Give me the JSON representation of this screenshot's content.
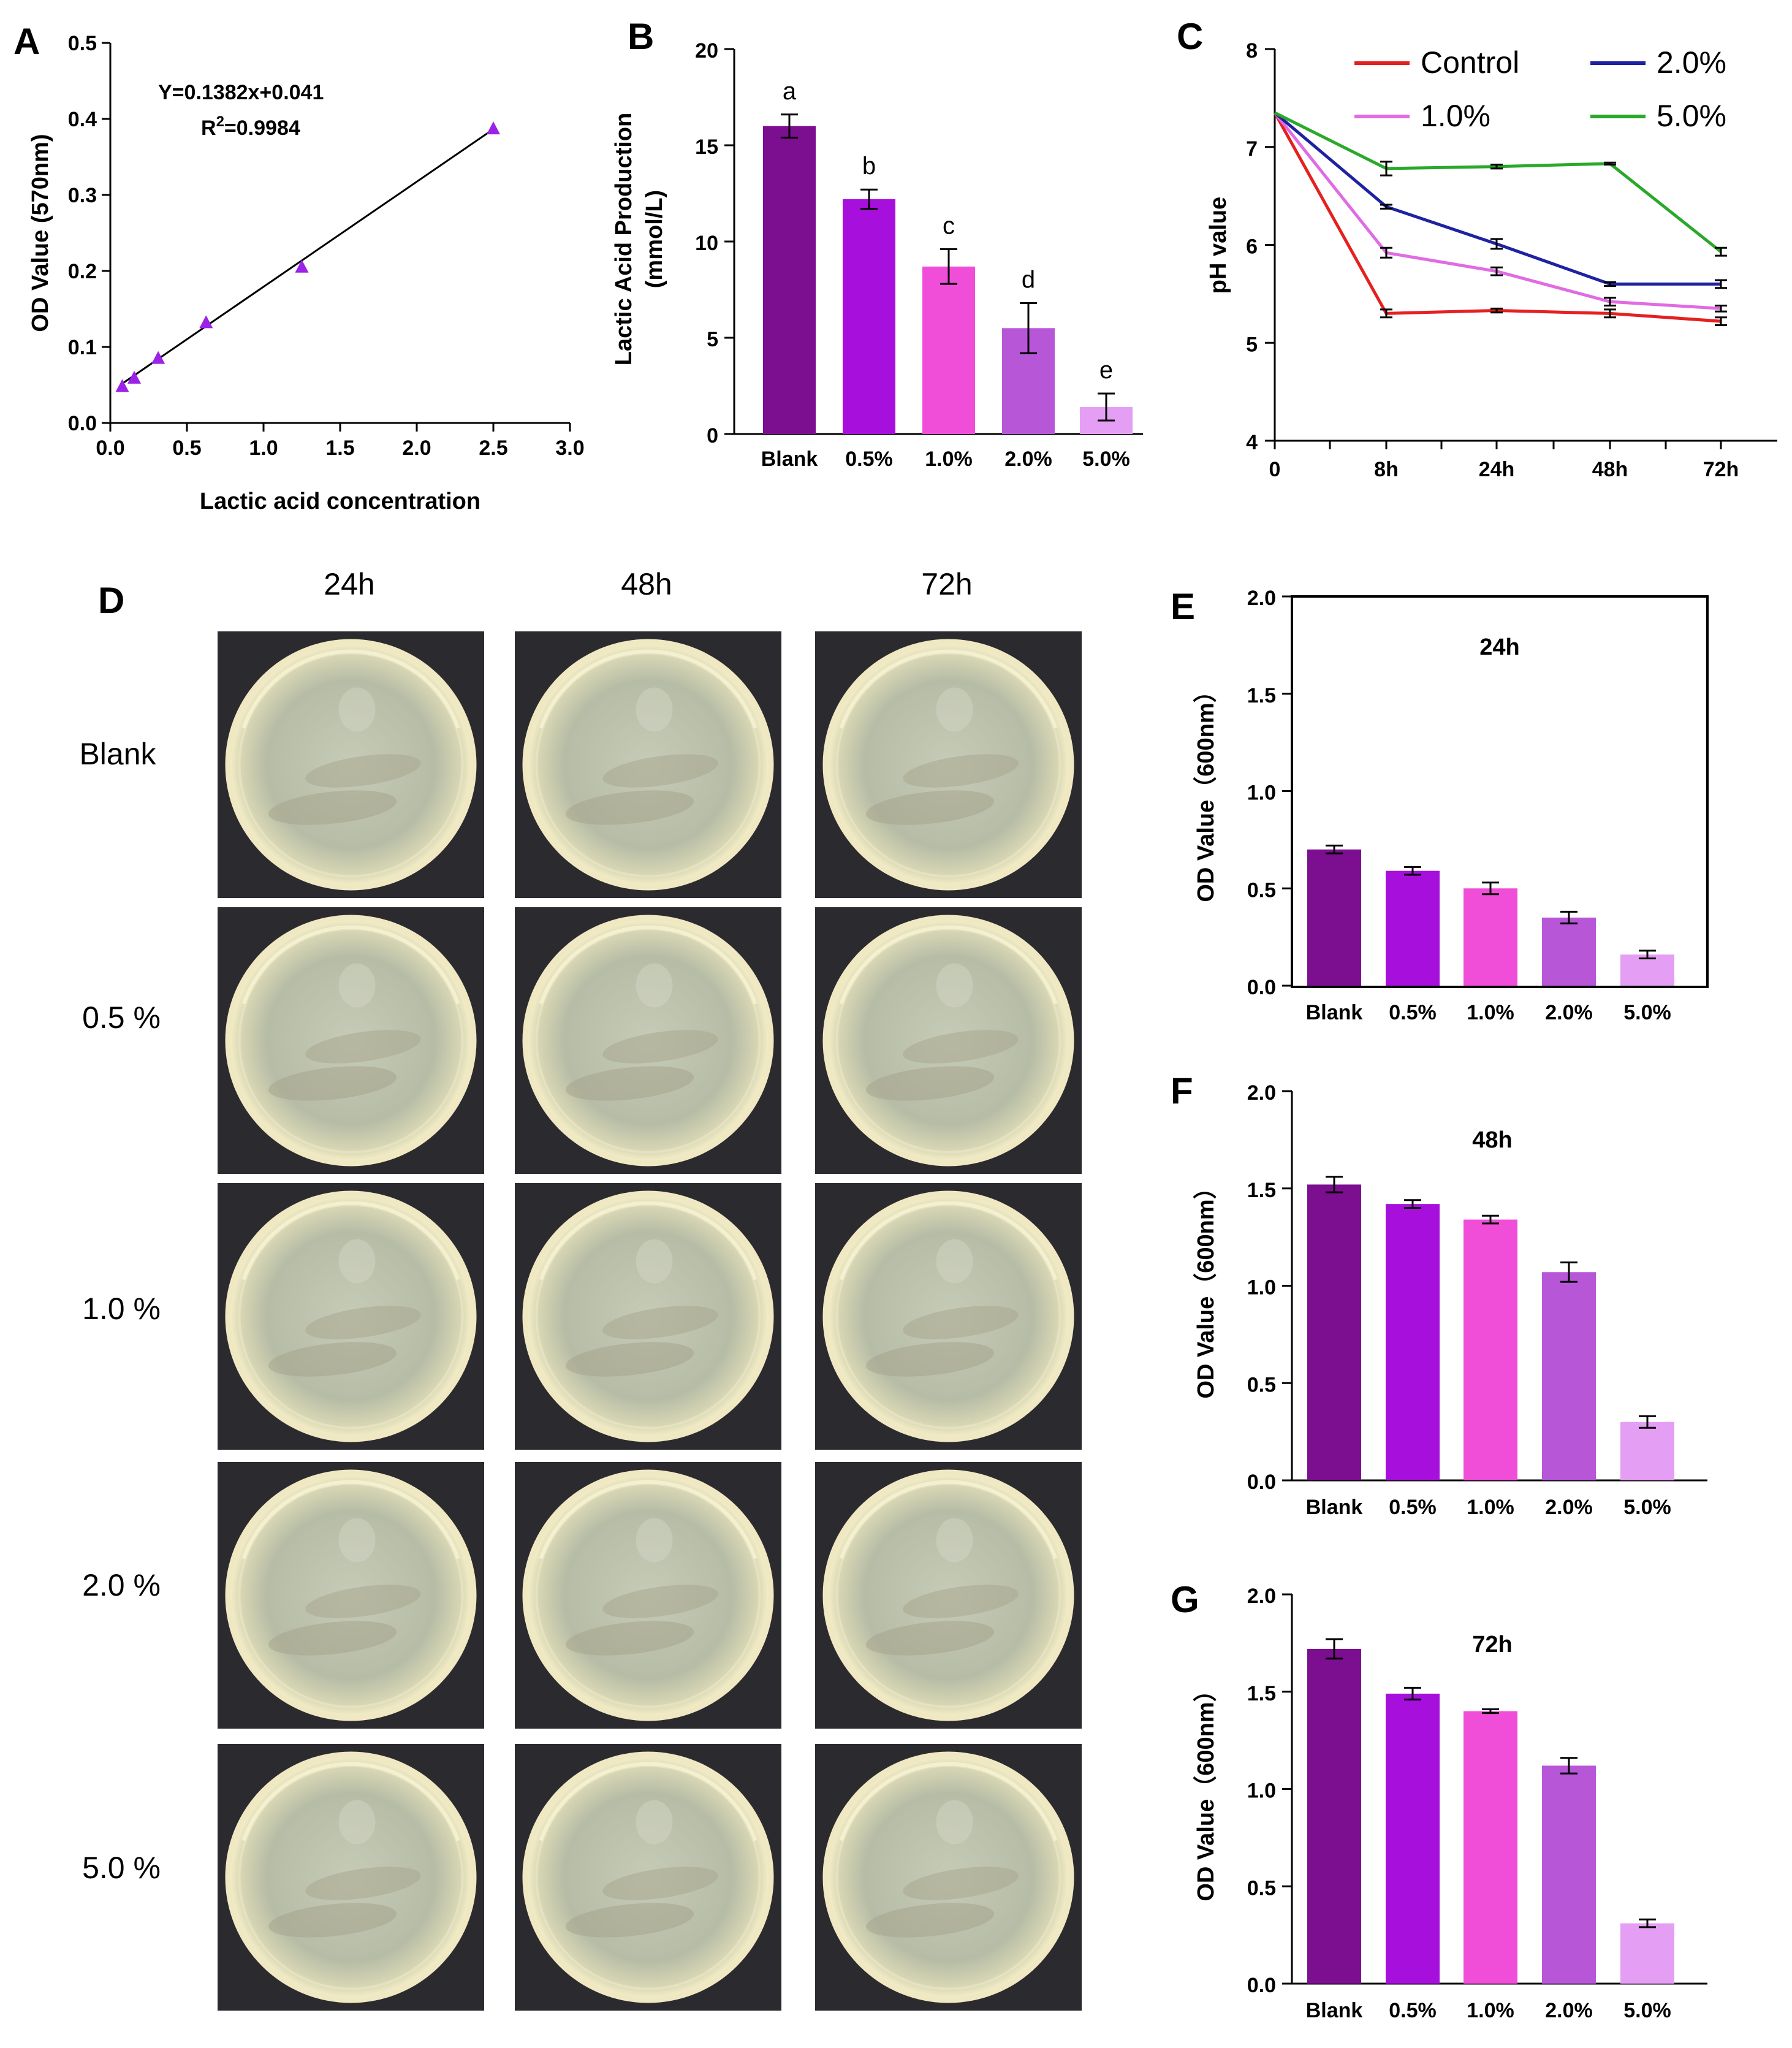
{
  "panels": {
    "a": "A",
    "b": "B",
    "c": "C",
    "d": "D",
    "e": "E",
    "f": "F",
    "g": "G"
  },
  "groups": [
    "Blank",
    "0.5%",
    "1.0%",
    "2.0%",
    "5.0%"
  ],
  "colors": {
    "bars": [
      "#7b0f8f",
      "#a60fdc",
      "#f04ed8",
      "#b757d8",
      "#e49ef3"
    ],
    "markers": "#9b22e6",
    "control": "#e52020",
    "c1": "#e06be3",
    "c2": "#1f22a0",
    "c5": "#2aa82a"
  },
  "plates": {
    "time_labels": [
      "24h",
      "48h",
      "72h"
    ],
    "row_labels": [
      "Blank",
      "0.5 %",
      "1.0 %",
      "2.0 %",
      "5.0 %"
    ]
  },
  "chart_data": [
    {
      "id": "A",
      "type": "scatter",
      "x": [
        0.078,
        0.156,
        0.3125,
        0.625,
        1.25,
        2.5
      ],
      "y": [
        0.048,
        0.059,
        0.085,
        0.132,
        0.205,
        0.387
      ],
      "fit": {
        "slope": 0.1382,
        "intercept": 0.041
      },
      "equation": "Y=0.1382x+0.041",
      "r2_label": "R",
      "r2_sup": "2",
      "r2_value": "=0.9984",
      "xlabel": "Lactic acid concentration",
      "ylabel": "OD Value (570nm)",
      "xlim": [
        0,
        3
      ],
      "ylim": [
        0,
        0.5
      ],
      "xticks": [
        "0.0",
        "0.5",
        "1.0",
        "1.5",
        "2.0",
        "2.5",
        "3.0"
      ],
      "yticks": [
        "0.0",
        "0.1",
        "0.2",
        "0.3",
        "0.4",
        "0.5"
      ]
    },
    {
      "id": "B",
      "type": "bar",
      "categories": [
        "Blank",
        "0.5%",
        "1.0%",
        "2.0%",
        "5.0%"
      ],
      "values": [
        16.0,
        12.2,
        8.7,
        5.5,
        1.4
      ],
      "errors": [
        0.6,
        0.5,
        0.9,
        1.3,
        0.7
      ],
      "letters": [
        "a",
        "b",
        "c",
        "d",
        "e"
      ],
      "ylabel": "Lactic Acid Production",
      "ylabel2": "(mmol/L)",
      "ylim": [
        0,
        20
      ],
      "yticks": [
        "0",
        "5",
        "10",
        "15",
        "20"
      ]
    },
    {
      "id": "C",
      "type": "line",
      "x": [
        "0",
        "8h",
        "24h",
        "48h",
        "72h"
      ],
      "ylabel": "pH value",
      "ylim": [
        4,
        8
      ],
      "yticks": [
        "4",
        "5",
        "6",
        "7",
        "8"
      ],
      "series": [
        {
          "name": "Control",
          "values": [
            7.35,
            5.3,
            5.33,
            5.3,
            5.22
          ],
          "errors": [
            0,
            0.04,
            0.02,
            0.04,
            0.04
          ]
        },
        {
          "name": "1.0%",
          "values": [
            7.35,
            5.92,
            5.73,
            5.42,
            5.35
          ],
          "errors": [
            0,
            0.05,
            0.04,
            0.04,
            0.03
          ]
        },
        {
          "name": "2.0%",
          "values": [
            7.35,
            6.39,
            6.01,
            5.6,
            5.6
          ],
          "errors": [
            0,
            0.02,
            0.05,
            0.02,
            0.04
          ]
        },
        {
          "name": "5.0%",
          "values": [
            7.35,
            6.78,
            6.8,
            6.83,
            5.93
          ],
          "errors": [
            0,
            0.07,
            0.02,
            0.01,
            0.04
          ]
        }
      ]
    },
    {
      "id": "E",
      "type": "bar",
      "title": "24h",
      "categories": [
        "Blank",
        "0.5%",
        "1.0%",
        "2.0%",
        "5.0%"
      ],
      "values": [
        0.7,
        0.59,
        0.5,
        0.35,
        0.16
      ],
      "errors": [
        0.02,
        0.02,
        0.03,
        0.03,
        0.02
      ],
      "ylabel": "OD Value（600nm）",
      "ylim": [
        0,
        2.0
      ],
      "yticks": [
        "0.0",
        "0.5",
        "1.0",
        "1.5",
        "2.0"
      ]
    },
    {
      "id": "F",
      "type": "bar",
      "title": "48h",
      "categories": [
        "Blank",
        "0.5%",
        "1.0%",
        "2.0%",
        "5.0%"
      ],
      "values": [
        1.52,
        1.42,
        1.34,
        1.07,
        0.3
      ],
      "errors": [
        0.04,
        0.02,
        0.02,
        0.05,
        0.03
      ],
      "ylabel": "OD Value（600nm）",
      "ylim": [
        0,
        2.0
      ],
      "yticks": [
        "0.0",
        "0.5",
        "1.0",
        "1.5",
        "2.0"
      ]
    },
    {
      "id": "G",
      "type": "bar",
      "title": "72h",
      "categories": [
        "Blank",
        "0.5%",
        "1.0%",
        "2.0%",
        "5.0%"
      ],
      "values": [
        1.72,
        1.49,
        1.4,
        1.12,
        0.31
      ],
      "errors": [
        0.05,
        0.03,
        0.01,
        0.04,
        0.02
      ],
      "ylabel": "OD Value（600nm）",
      "ylim": [
        0,
        2.0
      ],
      "yticks": [
        "0.0",
        "0.5",
        "1.0",
        "1.5",
        "2.0"
      ]
    }
  ]
}
